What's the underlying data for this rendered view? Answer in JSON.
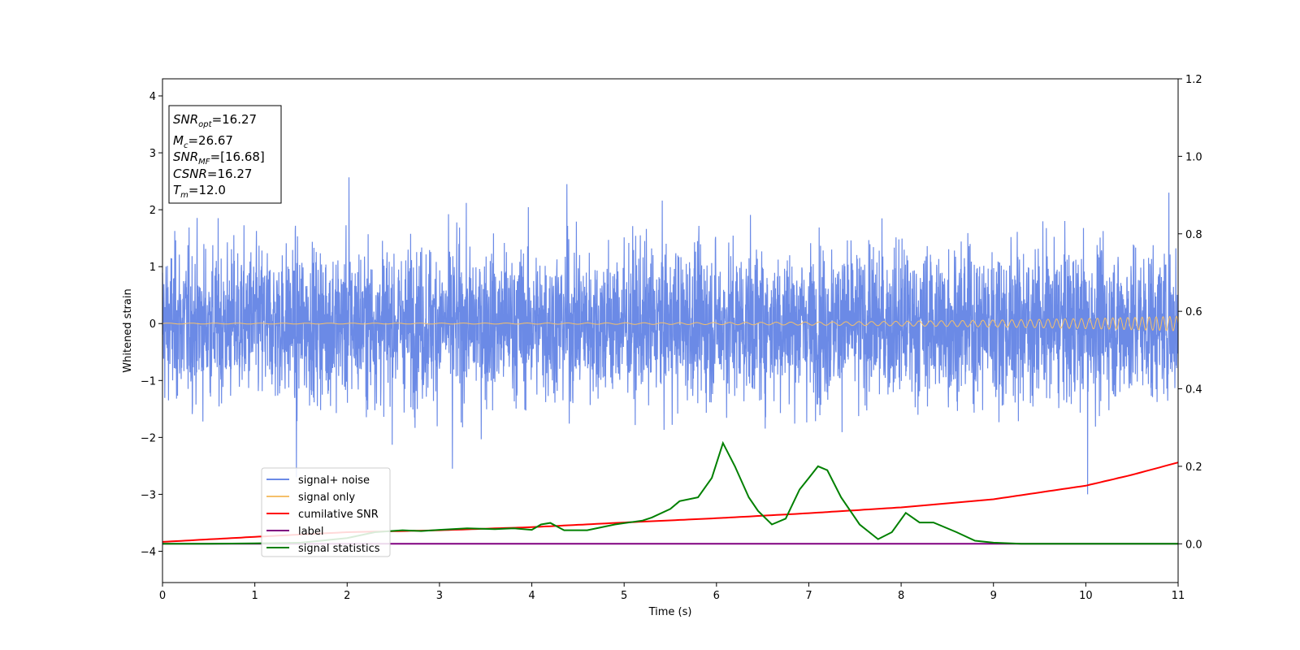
{
  "chart_data": {
    "type": "line",
    "xlabel": "Time (s)",
    "ylabel": "Whitened strain",
    "xlim": [
      0,
      11
    ],
    "ylim_left": [
      -4.55,
      4.3
    ],
    "ylim_right": [
      -0.1,
      1.2
    ],
    "x_ticks": [
      "0",
      "1",
      "2",
      "3",
      "4",
      "5",
      "6",
      "7",
      "8",
      "9",
      "10",
      "11"
    ],
    "y_left_ticks": [
      "−4",
      "−3",
      "−2",
      "−1",
      "0",
      "1",
      "2",
      "3",
      "4"
    ],
    "y_right_ticks": [
      "0.0",
      "0.2",
      "0.4",
      "0.6",
      "0.8",
      "1.0",
      "1.2"
    ],
    "grid": false,
    "legend_position": "lower-left",
    "info_box": {
      "snr_opt": "16.27",
      "mc": "26.67",
      "snr_mf": "[16.68]",
      "csnr": "16.27",
      "tm": "12.0"
    },
    "series": [
      {
        "name": "signal+ noise",
        "axis": "left",
        "color": "#6b8ae6",
        "note_values": "dense noise, approx. range -2.5 to 2.6",
        "spike_peaks": [
          [
            1.45,
            -2.7
          ],
          [
            2.02,
            2.57
          ],
          [
            4.38,
            2.45
          ],
          [
            3.14,
            -2.55
          ],
          [
            10.02,
            -3.0
          ],
          [
            10.9,
            2.3
          ]
        ]
      },
      {
        "name": "signal only",
        "axis": "left",
        "color": "#f5c06a",
        "amplitude_end": 0.12
      },
      {
        "name": "cumilative SNR",
        "axis": "right",
        "color": "#ff0000",
        "x": [
          0,
          1,
          2,
          3,
          4,
          5,
          6,
          7,
          8,
          9,
          10,
          10.5,
          11
        ],
        "y": [
          0.005,
          0.018,
          0.03,
          0.035,
          0.043,
          0.055,
          0.066,
          0.079,
          0.094,
          0.115,
          0.15,
          0.178,
          0.21
        ]
      },
      {
        "name": "label",
        "axis": "right",
        "color": "#800080",
        "x": [
          0,
          11
        ],
        "y": [
          0,
          0
        ]
      },
      {
        "name": "signal statistics",
        "axis": "right",
        "color": "#008000",
        "x": [
          0,
          0.5,
          1,
          1.5,
          2,
          2.3,
          2.6,
          2.8,
          3,
          3.3,
          3.6,
          3.8,
          4,
          4.1,
          4.2,
          4.35,
          4.6,
          4.9,
          5.2,
          5.3,
          5.5,
          5.6,
          5.8,
          5.95,
          6.07,
          6.2,
          6.35,
          6.45,
          6.6,
          6.75,
          6.9,
          7.0,
          7.1,
          7.2,
          7.35,
          7.55,
          7.75,
          7.9,
          8.05,
          8.2,
          8.35,
          8.6,
          8.8,
          9.0,
          9.3,
          10,
          11
        ],
        "y": [
          0,
          0.0,
          0.001,
          0.003,
          0.015,
          0.03,
          0.035,
          0.033,
          0.036,
          0.04,
          0.038,
          0.04,
          0.036,
          0.05,
          0.054,
          0.035,
          0.035,
          0.05,
          0.06,
          0.068,
          0.09,
          0.11,
          0.12,
          0.17,
          0.26,
          0.2,
          0.12,
          0.085,
          0.05,
          0.065,
          0.14,
          0.17,
          0.2,
          0.19,
          0.12,
          0.05,
          0.012,
          0.03,
          0.08,
          0.055,
          0.055,
          0.03,
          0.008,
          0.003,
          0.0,
          0.0,
          0.0
        ]
      }
    ]
  }
}
